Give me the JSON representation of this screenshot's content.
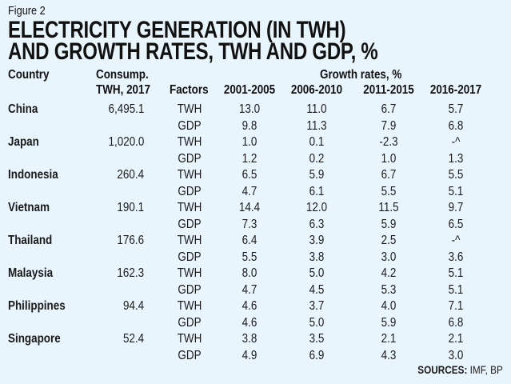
{
  "figure_label": "Figure 2",
  "title_lines": [
    "ELECTRICITY GENERATION (IN TWH)",
    "AND GROWTH RATES, TWH AND GDP, %"
  ],
  "headers": {
    "country": "Country",
    "consump_line1": "Consump.",
    "consump_line2": "TWH, 2017",
    "factors": "Factors",
    "growth_rates": "Growth rates, %",
    "periods": [
      "2001-2005",
      "2006-2010",
      "2011-2015",
      "2016-2017"
    ]
  },
  "sources_label": "SOURCES:",
  "sources_text": " IMF, BP",
  "chart_data": {
    "type": "table",
    "title": "ELECTRICITY GENERATION (IN TWH) AND GROWTH RATES, TWH AND GDP, %",
    "subtitle": "Figure 2",
    "columns": [
      "Country",
      "Consump. TWH, 2017",
      "Factors",
      "2001-2005",
      "2006-2010",
      "2011-2015",
      "2016-2017"
    ],
    "column_group": "Growth rates, %",
    "rows": [
      {
        "country": "China",
        "consumption": "6,495.1",
        "factors": [
          {
            "factor": "TWH",
            "values": [
              "13.0",
              "11.0",
              "6.7",
              "5.7"
            ]
          },
          {
            "factor": "GDP",
            "values": [
              "9.8",
              "11.3",
              "7.9",
              "6.8"
            ]
          }
        ]
      },
      {
        "country": "Japan",
        "consumption": "1,020.0",
        "factors": [
          {
            "factor": "TWH",
            "values": [
              "1.0",
              "0.1",
              "-2.3",
              "-^"
            ]
          },
          {
            "factor": "GDP",
            "values": [
              "1.2",
              "0.2",
              "1.0",
              "1.3"
            ]
          }
        ]
      },
      {
        "country": "Indonesia",
        "consumption": "260.4",
        "factors": [
          {
            "factor": "TWH",
            "values": [
              "6.5",
              "5.9",
              "6.7",
              "5.5"
            ]
          },
          {
            "factor": "GDP",
            "values": [
              "4.7",
              "6.1",
              "5.5",
              "5.1"
            ]
          }
        ]
      },
      {
        "country": "Vietnam",
        "consumption": "190.1",
        "factors": [
          {
            "factor": "TWH",
            "values": [
              "14.4",
              "12.0",
              "11.5",
              "9.7"
            ]
          },
          {
            "factor": "GDP",
            "values": [
              "7.3",
              "6.3",
              "5.9",
              "6.5"
            ]
          }
        ]
      },
      {
        "country": "Thailand",
        "consumption": "176.6",
        "factors": [
          {
            "factor": "TWH",
            "values": [
              "6.4",
              "3.9",
              "2.5",
              "-^"
            ]
          },
          {
            "factor": "GDP",
            "values": [
              "5.5",
              "3.8",
              "3.0",
              "3.6"
            ]
          }
        ]
      },
      {
        "country": "Malaysia",
        "consumption": "162.3",
        "factors": [
          {
            "factor": "TWH",
            "values": [
              "8.0",
              "5.0",
              "4.2",
              "5.1"
            ]
          },
          {
            "factor": "GDP",
            "values": [
              "4.7",
              "4.5",
              "5.3",
              "5.1"
            ]
          }
        ]
      },
      {
        "country": "Philippines",
        "consumption": "94.4",
        "factors": [
          {
            "factor": "TWH",
            "values": [
              "4.6",
              "3.7",
              "4.0",
              "7.1"
            ]
          },
          {
            "factor": "GDP",
            "values": [
              "4.6",
              "5.0",
              "5.9",
              "6.8"
            ]
          }
        ]
      },
      {
        "country": "Singapore",
        "consumption": "52.4",
        "factors": [
          {
            "factor": "TWH",
            "values": [
              "3.8",
              "3.5",
              "2.1",
              "2.1"
            ]
          },
          {
            "factor": "GDP",
            "values": [
              "4.9",
              "6.9",
              "4.3",
              "3.0"
            ]
          }
        ]
      }
    ],
    "source": "SOURCES: IMF, BP"
  }
}
